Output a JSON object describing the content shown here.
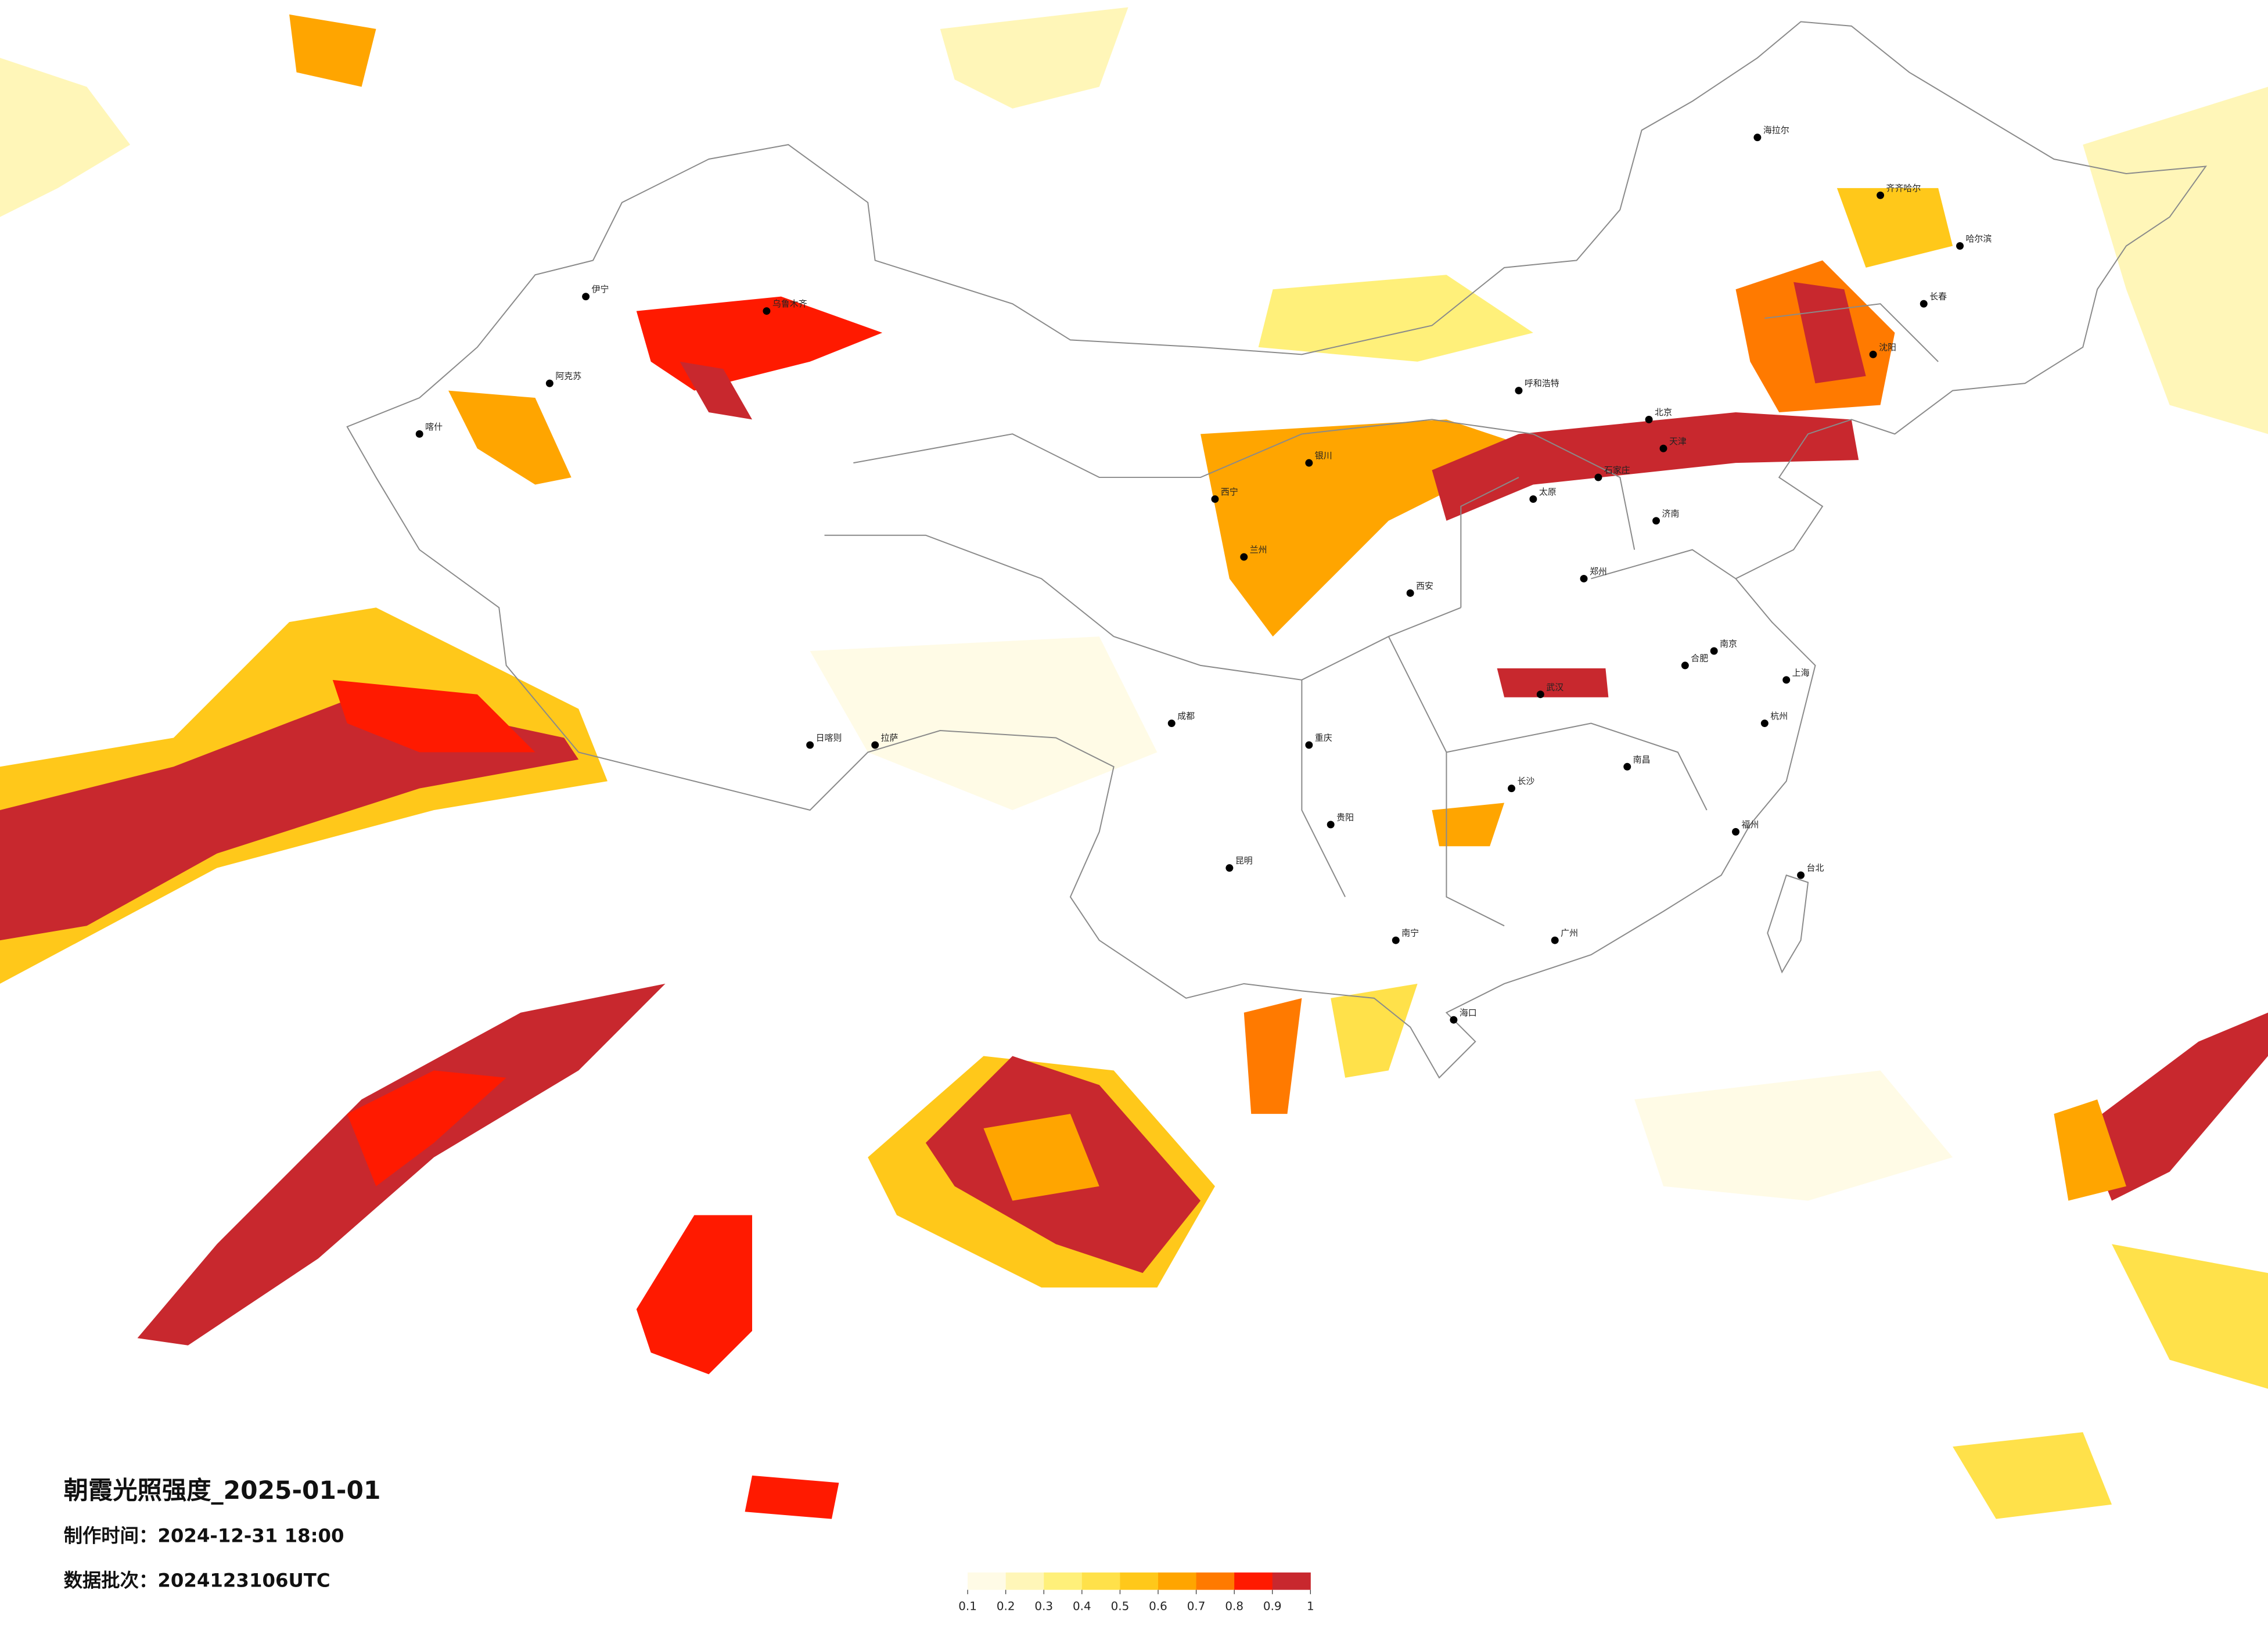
{
  "map": {
    "title": "朝霞光照强度_2025-01-01",
    "made_time": "制作时间：2024-12-31 18:00",
    "batch": "数据批次：2024123106UTC",
    "legend": {
      "ticks": [
        0.1,
        0.2,
        0.3,
        0.4,
        0.5,
        0.6,
        0.7,
        0.8,
        0.9,
        1
      ],
      "colors": [
        "#fffbe6",
        "#fff6b8",
        "#fff07a",
        "#ffe14a",
        "#ffc81a",
        "#ffa500",
        "#ff7a00",
        "#ff1a00",
        "#c8282e"
      ]
    },
    "cities": [
      "乌鲁木齐",
      "喀什",
      "伊宁",
      "阿克苏",
      "拉萨",
      "日喀则",
      "西宁",
      "兰州",
      "银川",
      "呼和浩特",
      "北京",
      "天津",
      "石家庄",
      "太原",
      "济南",
      "郑州",
      "西安",
      "成都",
      "重庆",
      "贵阳",
      "昆明",
      "南宁",
      "海口",
      "武汉",
      "长沙",
      "南昌",
      "合肥",
      "南京",
      "上海",
      "杭州",
      "福州",
      "广州",
      "台北",
      "沈阳",
      "长春",
      "哈尔滨",
      "海拉尔",
      "齐齐哈尔"
    ]
  }
}
